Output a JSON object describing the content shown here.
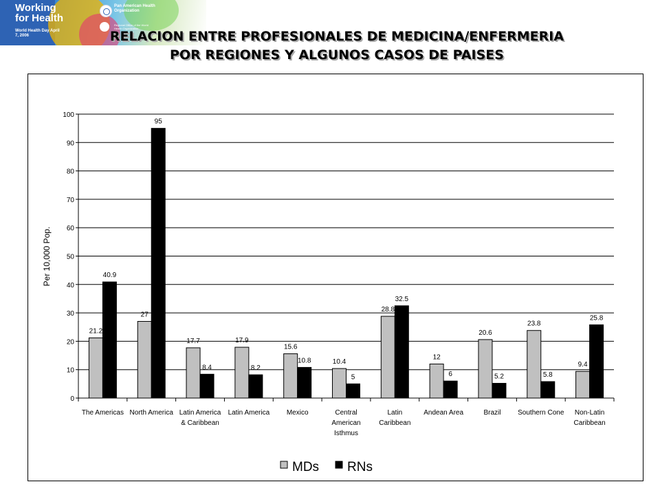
{
  "header": {
    "brand_title": "Working for Health",
    "brand_subtitle": "World Health Day April 7, 2006",
    "org_name": "Pan American Health Organization",
    "org_sub": "Regional Office of the World Health Organization",
    "title_line1": "RELACION ENTRE PROFESIONALES DE MEDICINA/ENFERMERIA",
    "title_line2": "POR REGIONES Y ALGUNOS CASOS DE PAISES"
  },
  "chart_data": {
    "type": "bar",
    "title": "",
    "xlabel": "",
    "ylabel": "Per 10,000 Pop.",
    "ylim": [
      0,
      100
    ],
    "yticks": [
      0,
      10,
      20,
      30,
      40,
      50,
      60,
      70,
      80,
      90,
      100
    ],
    "grid": true,
    "legend": "bottom",
    "categories": [
      [
        "The Americas"
      ],
      [
        "North America"
      ],
      [
        "Latin America",
        "& Caribbean"
      ],
      [
        "Latin America"
      ],
      [
        "Mexico"
      ],
      [
        "Central",
        "American",
        "Isthmus"
      ],
      [
        "Latin",
        "Caribbean"
      ],
      [
        "Andean Area"
      ],
      [
        "Brazil"
      ],
      [
        "Southern Cone"
      ],
      [
        "Non-Latin",
        "Caribbean"
      ]
    ],
    "series": [
      {
        "name": "MDs",
        "color": "#c0c0c0",
        "values": [
          21.2,
          27,
          17.7,
          17.9,
          15.6,
          10.4,
          28.8,
          12,
          20.6,
          23.8,
          9.4
        ],
        "labels": [
          "21.2",
          "27",
          "17.7",
          "17.9",
          "15.6",
          "10.4",
          "28.8",
          "12",
          "20.6",
          "23.8",
          "9.4"
        ]
      },
      {
        "name": "RNs",
        "color": "#000000",
        "values": [
          40.9,
          95,
          8.4,
          8.2,
          10.8,
          5,
          32.5,
          6,
          5.2,
          5.8,
          25.8
        ],
        "labels": [
          "40.9",
          "95",
          "8.4",
          "8.2",
          "10.8",
          "5",
          "32.5",
          "6",
          "5.2",
          "5.8",
          "25.8"
        ]
      }
    ]
  }
}
